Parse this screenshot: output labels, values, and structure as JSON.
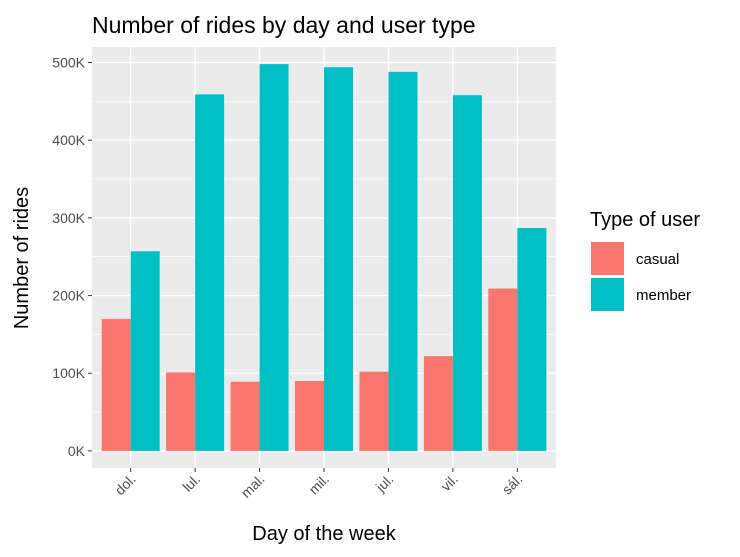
{
  "chart_data": {
    "type": "bar",
    "title": "Number of rides by day and user type",
    "xlabel": "Day of the week",
    "ylabel": "Number of rides",
    "categories": [
      "dol.",
      "lul.",
      "mal.",
      "mil.",
      "jul.",
      "vil.",
      "sál."
    ],
    "series": [
      {
        "name": "casual",
        "color": "#F8766D",
        "values": [
          170000,
          101000,
          89000,
          90000,
          102000,
          122000,
          209000
        ]
      },
      {
        "name": "member",
        "color": "#00BFC4",
        "values": [
          257000,
          459000,
          498000,
          494000,
          488000,
          458000,
          287000
        ]
      }
    ],
    "ylim": [
      -22000,
      520000
    ],
    "yticks": [
      0,
      100000,
      200000,
      300000,
      400000,
      500000
    ],
    "ytick_labels": [
      "0K",
      "100K",
      "200K",
      "300K",
      "400K",
      "500K"
    ],
    "grid": true,
    "panel_background": "#EBEBEB",
    "legend": {
      "title": "Type of user",
      "position": "right"
    }
  }
}
